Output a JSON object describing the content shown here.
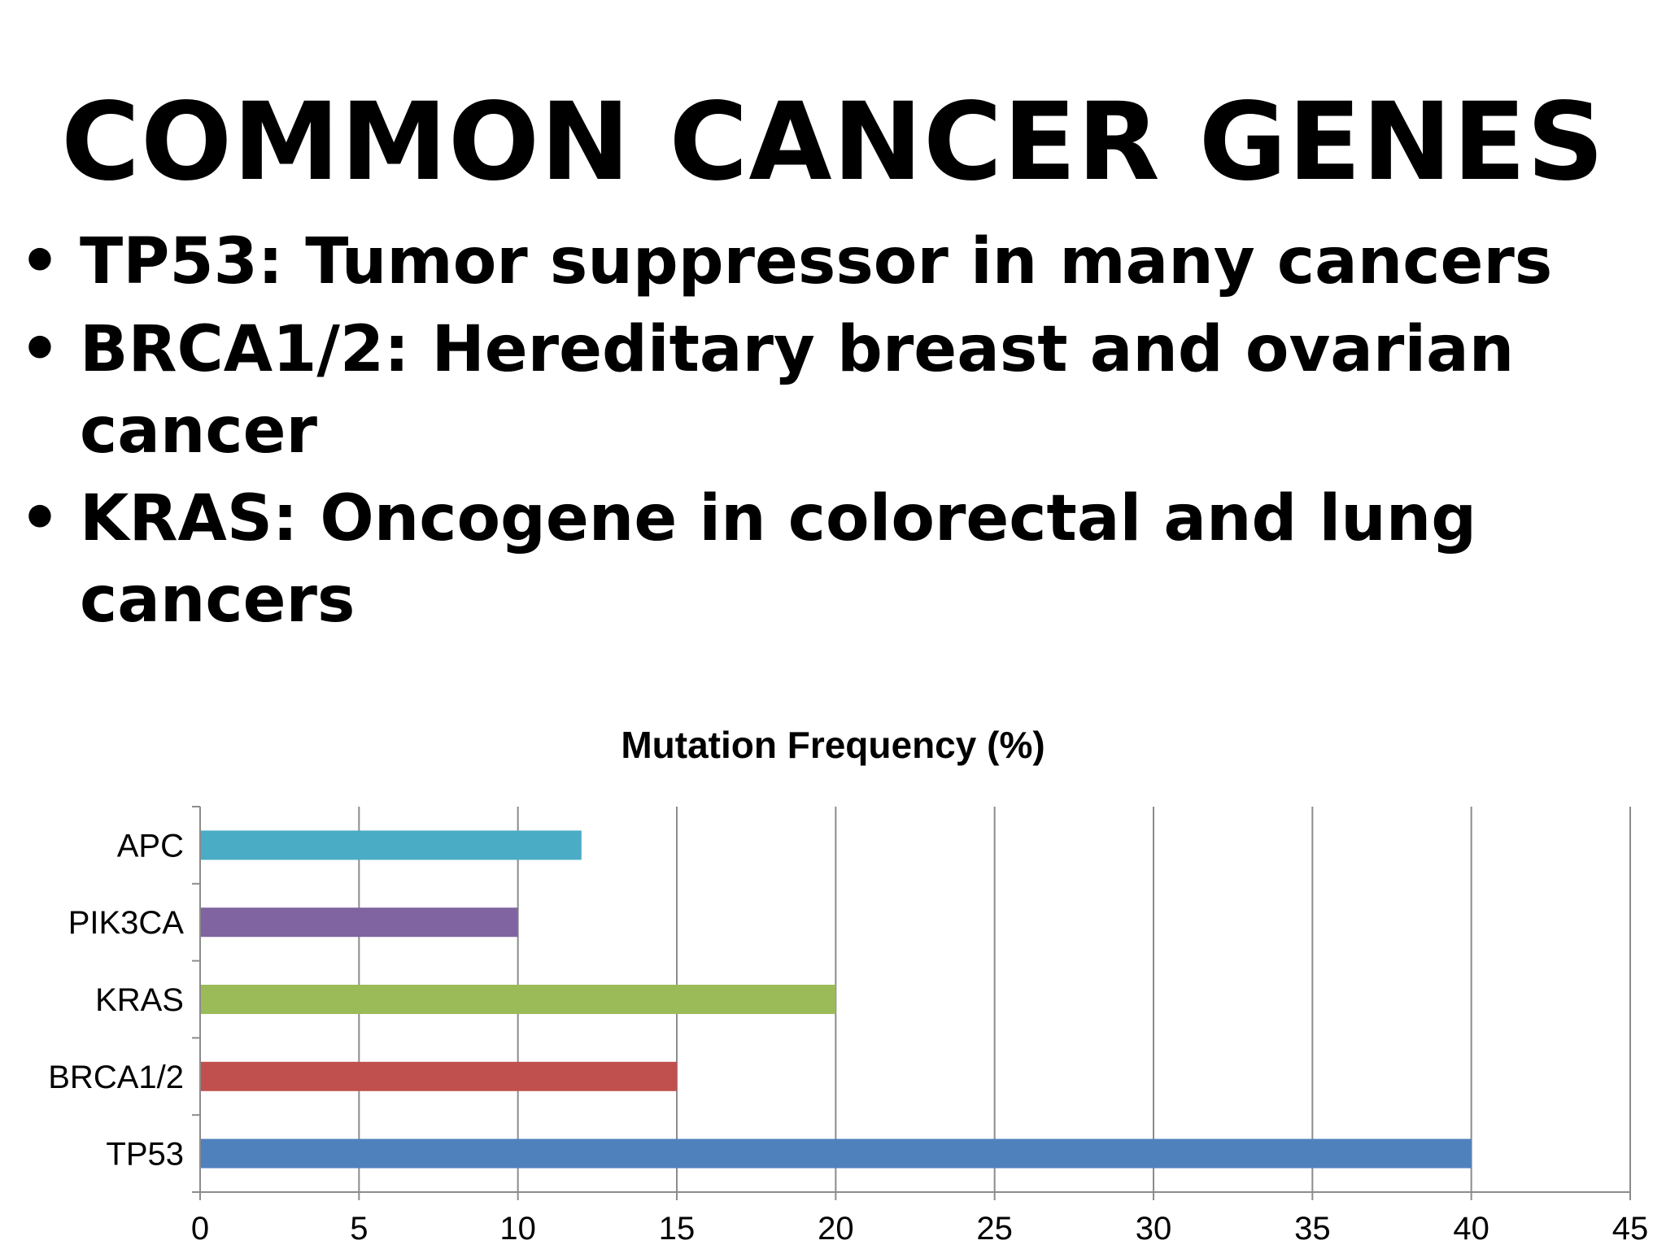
{
  "slide": {
    "title": "COMMON CANCER GENES",
    "bullet_symbol": "•",
    "bullets": [
      "TP53: Tumor suppressor in many cancers",
      "BRCA1/2: Hereditary breast and ovarian cancer",
      "KRAS: Oncogene in colorectal and lung cancers"
    ]
  },
  "chart_data": {
    "type": "bar",
    "orientation": "horizontal",
    "title": "Mutation Frequency (%)",
    "categories": [
      "TP53",
      "BRCA1/2",
      "KRAS",
      "PIK3CA",
      "APC"
    ],
    "values": [
      40,
      15,
      20,
      10,
      12
    ],
    "colors": [
      "#4F81BD",
      "#C0504D",
      "#9BBB59",
      "#8064A2",
      "#4BACC6"
    ],
    "xlim": [
      0,
      45
    ],
    "xticks": [
      0,
      5,
      10,
      15,
      20,
      25,
      30,
      35,
      40,
      45
    ],
    "grid": true,
    "legend": "none"
  }
}
